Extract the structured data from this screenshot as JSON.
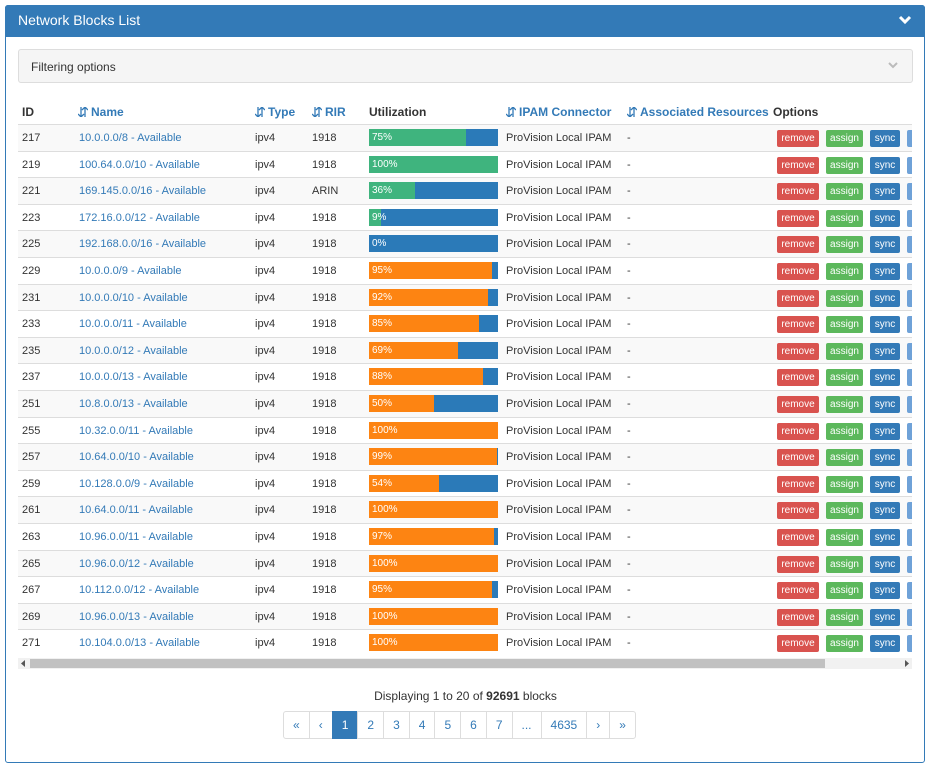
{
  "header": {
    "title": "Network Blocks List"
  },
  "filter": {
    "label": "Filtering options"
  },
  "table": {
    "columns": [
      {
        "label": "ID",
        "sortable": false
      },
      {
        "label": "Name",
        "sortable": true
      },
      {
        "label": "Type",
        "sortable": true
      },
      {
        "label": "RIR",
        "sortable": true
      },
      {
        "label": "Utilization",
        "sortable": false
      },
      {
        "label": "IPAM Connector",
        "sortable": true
      },
      {
        "label": "Associated Resources",
        "sortable": true
      },
      {
        "label": "Options",
        "sortable": false
      }
    ],
    "buttons": [
      "remove",
      "assign",
      "sync"
    ],
    "rows": [
      {
        "id": "217",
        "name": "10.0.0.0/8 - Available",
        "type": "ipv4",
        "rir": "1918",
        "utilization": 75,
        "utilization_label": "75%",
        "connector": "ProVision Local IPAM",
        "resources": "-",
        "color": "#3fb47e"
      },
      {
        "id": "219",
        "name": "100.64.0.0/10 - Available",
        "type": "ipv4",
        "rir": "1918",
        "utilization": 100,
        "utilization_label": "100%",
        "connector": "ProVision Local IPAM",
        "resources": "-",
        "color": "#3fb47e"
      },
      {
        "id": "221",
        "name": "169.145.0.0/16 - Available",
        "type": "ipv4",
        "rir": "ARIN",
        "utilization": 36,
        "utilization_label": "36%",
        "connector": "ProVision Local IPAM",
        "resources": "-",
        "color": "#3fb47e"
      },
      {
        "id": "223",
        "name": "172.16.0.0/12 - Available",
        "type": "ipv4",
        "rir": "1918",
        "utilization": 9,
        "utilization_label": "9%",
        "connector": "ProVision Local IPAM",
        "resources": "-",
        "color": "#3fb47e"
      },
      {
        "id": "225",
        "name": "192.168.0.0/16 - Available",
        "type": "ipv4",
        "rir": "1918",
        "utilization": 0,
        "utilization_label": "0%",
        "connector": "ProVision Local IPAM",
        "resources": "-",
        "color": "#fd8412"
      },
      {
        "id": "229",
        "name": "10.0.0.0/9 - Available",
        "type": "ipv4",
        "rir": "1918",
        "utilization": 95,
        "utilization_label": "95%",
        "connector": "ProVision Local IPAM",
        "resources": "-",
        "color": "#fd8412"
      },
      {
        "id": "231",
        "name": "10.0.0.0/10 - Available",
        "type": "ipv4",
        "rir": "1918",
        "utilization": 92,
        "utilization_label": "92%",
        "connector": "ProVision Local IPAM",
        "resources": "-",
        "color": "#fd8412"
      },
      {
        "id": "233",
        "name": "10.0.0.0/11 - Available",
        "type": "ipv4",
        "rir": "1918",
        "utilization": 85,
        "utilization_label": "85%",
        "connector": "ProVision Local IPAM",
        "resources": "-",
        "color": "#fd8412"
      },
      {
        "id": "235",
        "name": "10.0.0.0/12 - Available",
        "type": "ipv4",
        "rir": "1918",
        "utilization": 69,
        "utilization_label": "69%",
        "connector": "ProVision Local IPAM",
        "resources": "-",
        "color": "#fd8412"
      },
      {
        "id": "237",
        "name": "10.0.0.0/13 - Available",
        "type": "ipv4",
        "rir": "1918",
        "utilization": 88,
        "utilization_label": "88%",
        "connector": "ProVision Local IPAM",
        "resources": "-",
        "color": "#fd8412"
      },
      {
        "id": "251",
        "name": "10.8.0.0/13 - Available",
        "type": "ipv4",
        "rir": "1918",
        "utilization": 50,
        "utilization_label": "50%",
        "connector": "ProVision Local IPAM",
        "resources": "-",
        "color": "#fd8412"
      },
      {
        "id": "255",
        "name": "10.32.0.0/11 - Available",
        "type": "ipv4",
        "rir": "1918",
        "utilization": 100,
        "utilization_label": "100%",
        "connector": "ProVision Local IPAM",
        "resources": "-",
        "color": "#fd8412"
      },
      {
        "id": "257",
        "name": "10.64.0.0/10 - Available",
        "type": "ipv4",
        "rir": "1918",
        "utilization": 99,
        "utilization_label": "99%",
        "connector": "ProVision Local IPAM",
        "resources": "-",
        "color": "#fd8412"
      },
      {
        "id": "259",
        "name": "10.128.0.0/9 - Available",
        "type": "ipv4",
        "rir": "1918",
        "utilization": 54,
        "utilization_label": "54%",
        "connector": "ProVision Local IPAM",
        "resources": "-",
        "color": "#fd8412"
      },
      {
        "id": "261",
        "name": "10.64.0.0/11 - Available",
        "type": "ipv4",
        "rir": "1918",
        "utilization": 100,
        "utilization_label": "100%",
        "connector": "ProVision Local IPAM",
        "resources": "-",
        "color": "#fd8412"
      },
      {
        "id": "263",
        "name": "10.96.0.0/11 - Available",
        "type": "ipv4",
        "rir": "1918",
        "utilization": 97,
        "utilization_label": "97%",
        "connector": "ProVision Local IPAM",
        "resources": "-",
        "color": "#fd8412"
      },
      {
        "id": "265",
        "name": "10.96.0.0/12 - Available",
        "type": "ipv4",
        "rir": "1918",
        "utilization": 100,
        "utilization_label": "100%",
        "connector": "ProVision Local IPAM",
        "resources": "-",
        "color": "#fd8412"
      },
      {
        "id": "267",
        "name": "10.112.0.0/12 - Available",
        "type": "ipv4",
        "rir": "1918",
        "utilization": 95,
        "utilization_label": "95%",
        "connector": "ProVision Local IPAM",
        "resources": "-",
        "color": "#fd8412"
      },
      {
        "id": "269",
        "name": "10.96.0.0/13 - Available",
        "type": "ipv4",
        "rir": "1918",
        "utilization": 100,
        "utilization_label": "100%",
        "connector": "ProVision Local IPAM",
        "resources": "-",
        "color": "#fd8412"
      },
      {
        "id": "271",
        "name": "10.104.0.0/13 - Available",
        "type": "ipv4",
        "rir": "1918",
        "utilization": 100,
        "utilization_label": "100%",
        "connector": "ProVision Local IPAM",
        "resources": "-",
        "color": "#fd8412"
      }
    ]
  },
  "footer": {
    "prefix": "Displaying 1 to 20 of",
    "total": "92691",
    "suffix": "blocks"
  },
  "pagination": {
    "pages": [
      "«",
      "‹",
      "1",
      "2",
      "3",
      "4",
      "5",
      "6",
      "7",
      "...",
      "4635",
      "›",
      "»"
    ],
    "active": 2
  }
}
